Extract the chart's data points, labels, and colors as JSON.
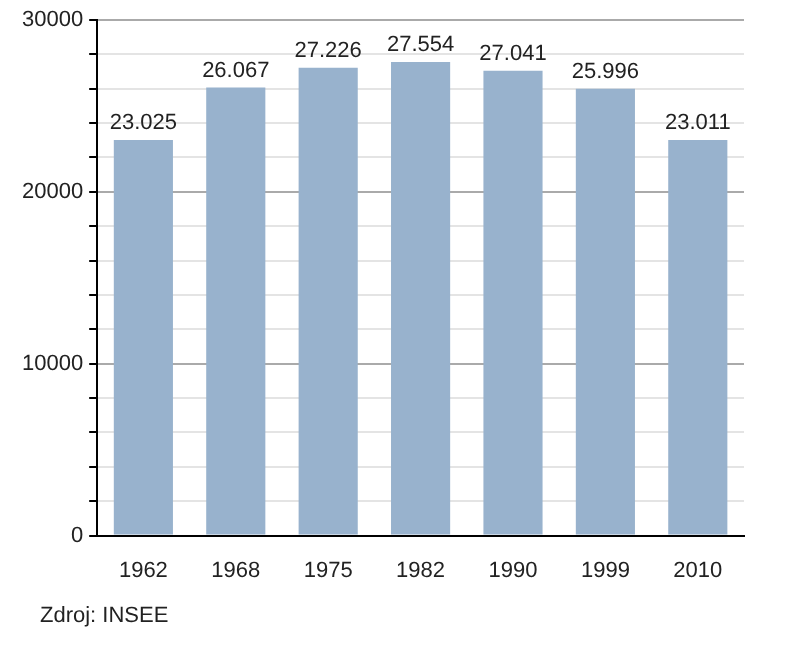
{
  "chart_data": {
    "type": "bar",
    "categories": [
      "1962",
      "1968",
      "1975",
      "1982",
      "1990",
      "1999",
      "2010"
    ],
    "values": [
      23025,
      26067,
      27226,
      27554,
      27041,
      25996,
      23011
    ],
    "value_labels": [
      "23.025",
      "26.067",
      "27.226",
      "27.554",
      "27.041",
      "25.996",
      "23.011"
    ],
    "color": "#98b2cd",
    "ylim": [
      0,
      30000
    ],
    "yticks": [
      0,
      {
        "value": 2000,
        "label": null
      },
      {
        "value": 4000,
        "label": null
      },
      {
        "value": 6000,
        "label": null
      },
      {
        "value": 8000,
        "label": null
      },
      10000,
      {
        "value": 12000,
        "label": null
      },
      {
        "value": 14000,
        "label": null
      },
      {
        "value": 16000,
        "label": null
      },
      {
        "value": 18000,
        "label": null
      },
      20000,
      {
        "value": 22000,
        "label": null
      },
      {
        "value": 24000,
        "label": null
      },
      {
        "value": 26000,
        "label": null
      },
      {
        "value": 28000,
        "label": null
      },
      30000
    ],
    "grid": true,
    "annotations": [
      "Zdroj: INSEE"
    ]
  }
}
